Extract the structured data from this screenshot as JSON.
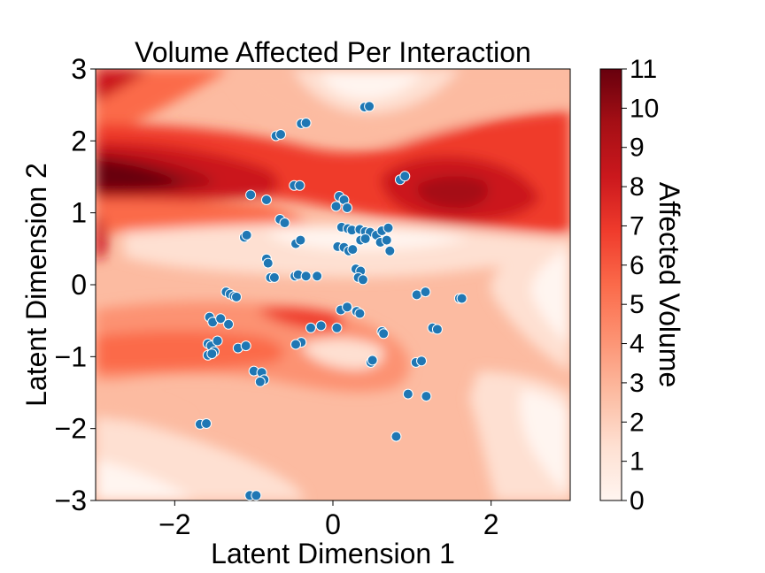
{
  "chart_data": {
    "type": "heatmap",
    "title": "Volume Affected Per Interaction",
    "xlabel": "Latent Dimension 1",
    "ylabel": "Latent Dimension 2",
    "xlim": [
      -3,
      3
    ],
    "ylim": [
      -3,
      3
    ],
    "xticks": [
      -2,
      0,
      2
    ],
    "yticks": [
      -3,
      -2,
      -1,
      0,
      1,
      2,
      3
    ],
    "xtick_labels": [
      "−2",
      "0",
      "2"
    ],
    "ytick_labels": [
      "−3",
      "−2",
      "−1",
      "0",
      "1",
      "2",
      "3"
    ],
    "grid": false,
    "colormap": "Reds",
    "colorbar": {
      "label": "Affected Volume",
      "range": [
        0,
        11
      ],
      "ticks": [
        0,
        1,
        2,
        3,
        4,
        5,
        6,
        7,
        8,
        9,
        10,
        11
      ],
      "tick_labels": [
        "0",
        "1",
        "2",
        "3",
        "4",
        "5",
        "6",
        "7",
        "8",
        "9",
        "10",
        "11"
      ]
    },
    "point_color": "#1f77b4",
    "points": [
      [
        -1.68,
        -1.94
      ],
      [
        -1.6,
        -1.93
      ],
      [
        -1.05,
        -2.93
      ],
      [
        -0.97,
        -2.93
      ],
      [
        -0.72,
        2.07
      ],
      [
        -0.66,
        2.09
      ],
      [
        -0.4,
        2.24
      ],
      [
        -0.34,
        2.25
      ],
      [
        0.4,
        2.47
      ],
      [
        0.46,
        2.48
      ],
      [
        0.85,
        1.46
      ],
      [
        0.91,
        1.51
      ],
      [
        -1.04,
        1.25
      ],
      [
        -0.84,
        1.18
      ],
      [
        -0.49,
        1.38
      ],
      [
        -0.42,
        1.38
      ],
      [
        0.08,
        1.23
      ],
      [
        0.14,
        1.18
      ],
      [
        0.04,
        1.09
      ],
      [
        0.18,
        1.07
      ],
      [
        -0.67,
        0.91
      ],
      [
        -0.61,
        0.86
      ],
      [
        -1.12,
        0.66
      ],
      [
        -1.09,
        0.69
      ],
      [
        -0.84,
        0.36
      ],
      [
        -0.82,
        0.3
      ],
      [
        -0.79,
        0.1
      ],
      [
        -0.74,
        0.1
      ],
      [
        -0.48,
        0.12
      ],
      [
        -0.44,
        0.14
      ],
      [
        -0.34,
        0.12
      ],
      [
        -0.2,
        0.12
      ],
      [
        -0.47,
        0.57
      ],
      [
        -0.41,
        0.62
      ],
      [
        0.06,
        0.53
      ],
      [
        0.14,
        0.52
      ],
      [
        0.2,
        0.47
      ],
      [
        0.11,
        0.8
      ],
      [
        0.19,
        0.78
      ],
      [
        0.24,
        0.76
      ],
      [
        0.34,
        0.77
      ],
      [
        0.41,
        0.74
      ],
      [
        0.47,
        0.73
      ],
      [
        0.55,
        0.69
      ],
      [
        0.62,
        0.75
      ],
      [
        0.7,
        0.79
      ],
      [
        0.35,
        0.62
      ],
      [
        0.41,
        0.64
      ],
      [
        0.6,
        0.59
      ],
      [
        0.68,
        0.62
      ],
      [
        0.25,
        0.49
      ],
      [
        0.72,
        0.47
      ],
      [
        0.29,
        0.22
      ],
      [
        0.35,
        0.19
      ],
      [
        0.32,
        0.1
      ],
      [
        0.38,
        0.07
      ],
      [
        -1.35,
        -0.1
      ],
      [
        -1.3,
        -0.13
      ],
      [
        -1.25,
        -0.16
      ],
      [
        -1.22,
        -0.17
      ],
      [
        -1.56,
        -0.45
      ],
      [
        -1.52,
        -0.52
      ],
      [
        -1.42,
        -0.47
      ],
      [
        -1.32,
        -0.55
      ],
      [
        -1.58,
        -0.82
      ],
      [
        -1.54,
        -0.85
      ],
      [
        -1.5,
        -0.93
      ],
      [
        -1.46,
        -0.78
      ],
      [
        -1.58,
        -0.98
      ],
      [
        -1.53,
        -0.96
      ],
      [
        -1.2,
        -0.88
      ],
      [
        -1.1,
        -0.85
      ],
      [
        -1.0,
        -1.2
      ],
      [
        -0.9,
        -1.22
      ],
      [
        -0.87,
        -1.32
      ],
      [
        -0.92,
        -1.35
      ],
      [
        -0.4,
        -0.8
      ],
      [
        -0.47,
        -0.83
      ],
      [
        -0.28,
        -0.6
      ],
      [
        -0.15,
        -0.57
      ],
      [
        0.05,
        -0.6
      ],
      [
        0.1,
        -0.35
      ],
      [
        0.18,
        -0.31
      ],
      [
        0.3,
        -0.37
      ],
      [
        0.34,
        -0.4
      ],
      [
        0.62,
        -0.65
      ],
      [
        0.64,
        -0.68
      ],
      [
        0.48,
        -1.08
      ],
      [
        0.5,
        -1.05
      ],
      [
        0.95,
        -1.52
      ],
      [
        1.06,
        -0.14
      ],
      [
        1.17,
        -0.1
      ],
      [
        1.26,
        -0.6
      ],
      [
        1.32,
        -0.62
      ],
      [
        1.6,
        -0.19
      ],
      [
        1.63,
        -0.19
      ],
      [
        1.05,
        -1.08
      ],
      [
        1.12,
        -1.06
      ],
      [
        1.18,
        -1.55
      ],
      [
        0.8,
        -2.11
      ]
    ]
  }
}
